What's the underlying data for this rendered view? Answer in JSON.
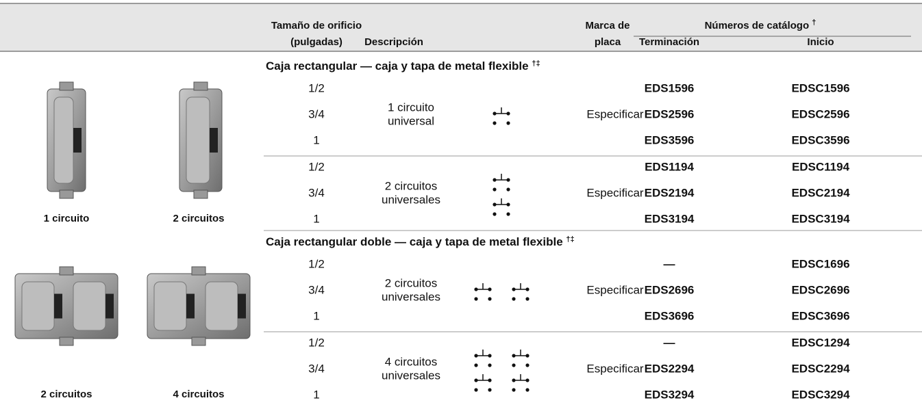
{
  "header": {
    "size_line1": "Tamaño de orificio",
    "size_line2": "(pulgadas)",
    "description": "Descripción",
    "nameplate_line1": "Marca de",
    "nameplate_line2": "placa",
    "catalog": "Números de catálogo",
    "catalog_note": "†",
    "termination": "Terminación",
    "start": "Inicio"
  },
  "sections": [
    {
      "title": "Caja rectangular — caja y tapa de metal flexible",
      "note": "†‡",
      "images": [
        {
          "label": "1 circuito"
        },
        {
          "label": "2 circuitos"
        }
      ],
      "groups": [
        {
          "description_line1": "1 circuito",
          "description_line2": "universal",
          "nameplate": "Especificar",
          "rows": [
            {
              "size": "1/2",
              "termination": "EDS1596",
              "start": "EDSC1596"
            },
            {
              "size": "3/4",
              "termination": "EDS2596",
              "start": "EDSC2596"
            },
            {
              "size": "1",
              "termination": "EDS3596",
              "start": "EDSC3596"
            }
          ]
        },
        {
          "description_line1": "2 circuitos",
          "description_line2": "universales",
          "nameplate": "Especificar",
          "rows": [
            {
              "size": "1/2",
              "termination": "EDS1194",
              "start": "EDSC1194"
            },
            {
              "size": "3/4",
              "termination": "EDS2194",
              "start": "EDSC2194"
            },
            {
              "size": "1",
              "termination": "EDS3194",
              "start": "EDSC3194"
            }
          ]
        }
      ]
    },
    {
      "title": "Caja rectangular doble — caja y tapa de metal flexible",
      "note": "†‡",
      "images": [
        {
          "label": "2 circuitos"
        },
        {
          "label": "4 circuitos"
        }
      ],
      "groups": [
        {
          "description_line1": "2 circuitos",
          "description_line2": "universales",
          "nameplate": "Especificar",
          "rows": [
            {
              "size": "1/2",
              "termination": "—",
              "start": "EDSC1696"
            },
            {
              "size": "3/4",
              "termination": "EDS2696",
              "start": "EDSC2696"
            },
            {
              "size": "1",
              "termination": "EDS3696",
              "start": "EDSC3696"
            }
          ]
        },
        {
          "description_line1": "4 circuitos",
          "description_line2": "universales",
          "nameplate": "Especificar",
          "rows": [
            {
              "size": "1/2",
              "termination": "—",
              "start": "EDSC1294"
            },
            {
              "size": "3/4",
              "termination": "EDS2294",
              "start": "EDSC2294"
            },
            {
              "size": "1",
              "termination": "EDS3294",
              "start": "EDSC3294"
            }
          ]
        }
      ]
    }
  ]
}
